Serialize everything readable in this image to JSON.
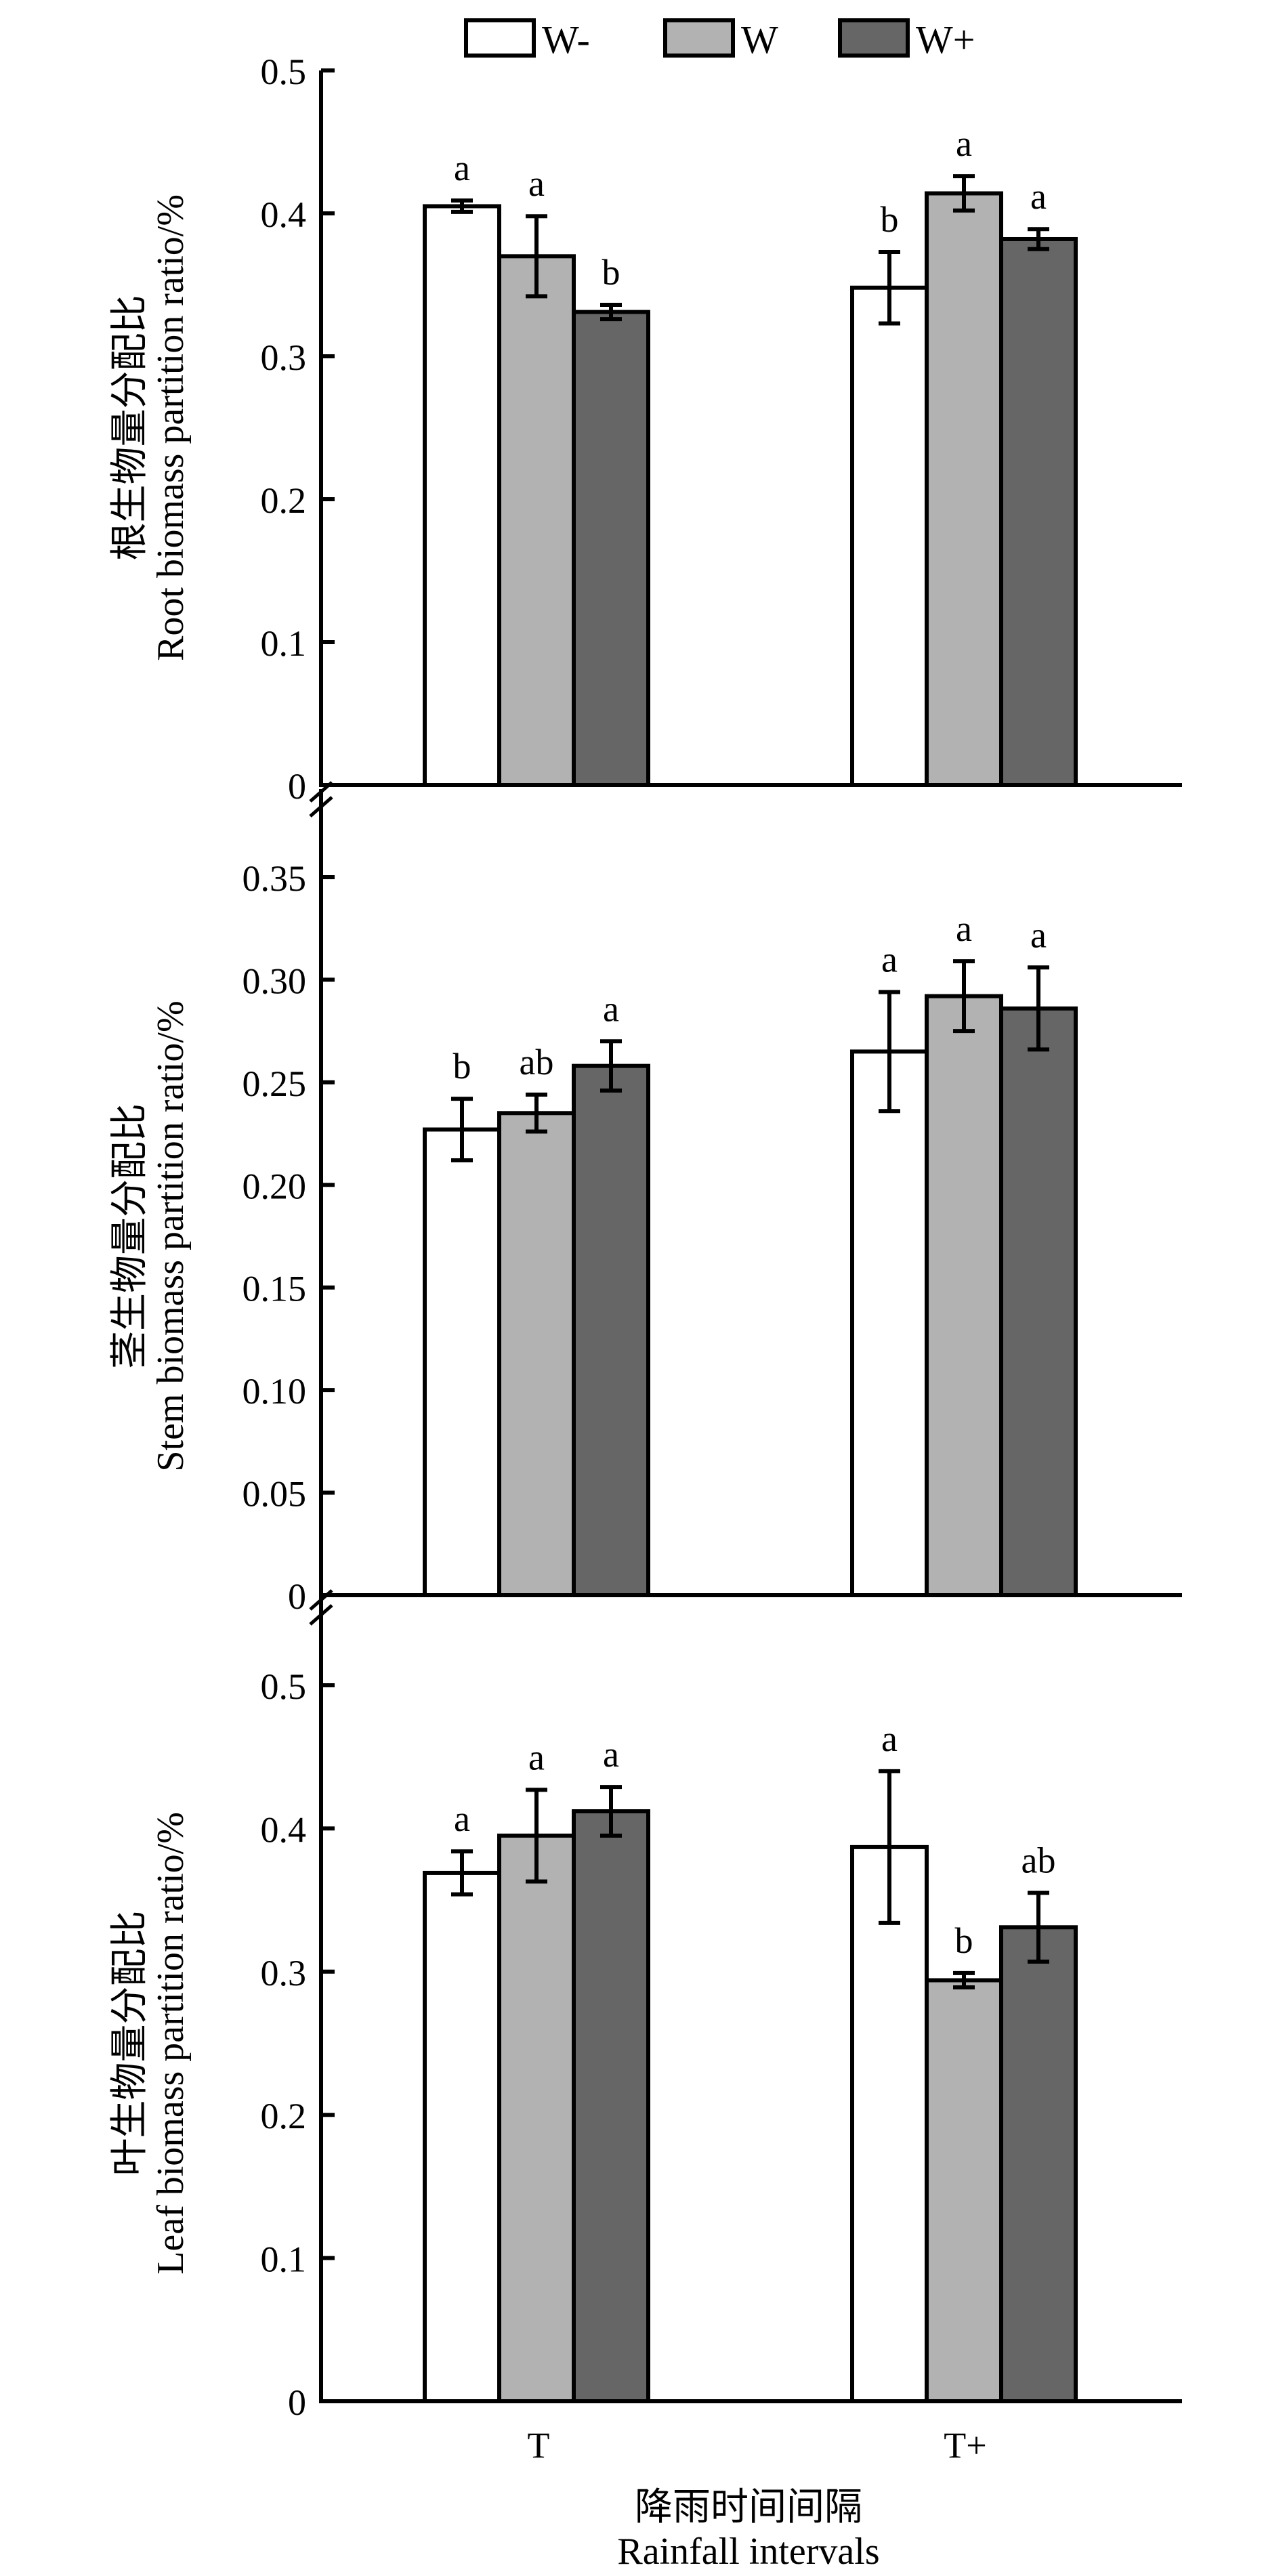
{
  "chart_data": [
    {
      "type": "bar",
      "panel": "root",
      "ylabel_cn": "根生物量分配比",
      "ylabel": "Root biomass partition ratio/%",
      "ylim": [
        0,
        0.5
      ],
      "yticks": [
        "0",
        "0.1",
        "0.2",
        "0.3",
        "0.4",
        "0.5"
      ],
      "ytick_values": [
        0,
        0.1,
        0.2,
        0.3,
        0.4,
        0.5
      ],
      "categories": [
        "T",
        "T+"
      ],
      "series": [
        {
          "name": "W-",
          "values": [
            0.405,
            0.348
          ],
          "errors": [
            0.004,
            0.025
          ],
          "letters": [
            "a",
            "b"
          ]
        },
        {
          "name": "W",
          "values": [
            0.37,
            0.414
          ],
          "errors": [
            0.028,
            0.012
          ],
          "letters": [
            "a",
            "a"
          ]
        },
        {
          "name": "W+",
          "values": [
            0.331,
            0.382
          ],
          "errors": [
            0.005,
            0.007
          ],
          "letters": [
            "b",
            "a"
          ]
        }
      ],
      "axis_break": false
    },
    {
      "type": "bar",
      "panel": "stem",
      "ylabel_cn": "茎生物量分配比",
      "ylabel": "Stem biomass partition ratio/%",
      "ylim": [
        0,
        0.35
      ],
      "yticks": [
        "0",
        "0.05",
        "0.10",
        "0.15",
        "0.20",
        "0.25",
        "0.30",
        "0.35"
      ],
      "ytick_values": [
        0,
        0.05,
        0.1,
        0.15,
        0.2,
        0.25,
        0.3,
        0.35
      ],
      "categories": [
        "T",
        "T+"
      ],
      "series": [
        {
          "name": "W-",
          "values": [
            0.227,
            0.265
          ],
          "errors": [
            0.015,
            0.029
          ],
          "letters": [
            "b",
            "a"
          ]
        },
        {
          "name": "W",
          "values": [
            0.235,
            0.292
          ],
          "errors": [
            0.009,
            0.017
          ],
          "letters": [
            "ab",
            "a"
          ]
        },
        {
          "name": "W+",
          "values": [
            0.258,
            0.286
          ],
          "errors": [
            0.012,
            0.02
          ],
          "letters": [
            "a",
            "a"
          ]
        }
      ],
      "axis_break": true
    },
    {
      "type": "bar",
      "panel": "leaf",
      "ylabel_cn": "叶生物量分配比",
      "ylabel": "Leaf biomass partition ratio/%",
      "ylim": [
        0,
        0.5
      ],
      "yticks": [
        "0",
        "0.1",
        "0.2",
        "0.3",
        "0.4",
        "0.5"
      ],
      "ytick_values": [
        0,
        0.1,
        0.2,
        0.3,
        0.4,
        0.5
      ],
      "categories": [
        "T",
        "T+"
      ],
      "series": [
        {
          "name": "W-",
          "values": [
            0.369,
            0.387
          ],
          "errors": [
            0.015,
            0.053
          ],
          "letters": [
            "a",
            "a"
          ]
        },
        {
          "name": "W",
          "values": [
            0.395,
            0.294
          ],
          "errors": [
            0.032,
            0.005
          ],
          "letters": [
            "a",
            "b"
          ]
        },
        {
          "name": "W+",
          "values": [
            0.412,
            0.331
          ],
          "errors": [
            0.017,
            0.024
          ],
          "letters": [
            "a",
            "ab"
          ]
        }
      ],
      "axis_break": true
    }
  ],
  "legend": {
    "placement": "top-center",
    "items": [
      {
        "label": "W-",
        "color": "#ffffff"
      },
      {
        "label": "W",
        "color": "#b2b2b2"
      },
      {
        "label": "W+",
        "color": "#666666"
      }
    ]
  },
  "xaxis": {
    "categories": [
      "T",
      "T+"
    ],
    "title_cn": "降雨时间间隔",
    "title": "Rainfall intervals"
  }
}
